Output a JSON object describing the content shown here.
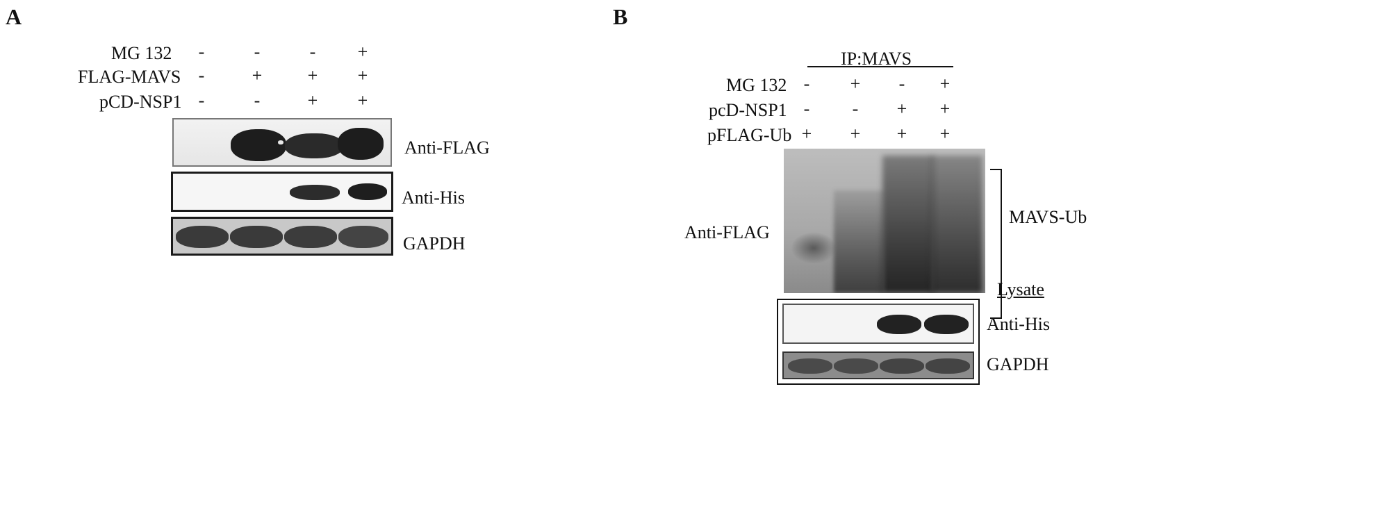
{
  "panels": {
    "A": {
      "letter": "A",
      "rows": [
        {
          "label": "MG 132",
          "signs": [
            "-",
            "-",
            "-",
            "+"
          ]
        },
        {
          "label": "FLAG-MAVS",
          "signs": [
            "-",
            "+",
            "+",
            "+"
          ]
        },
        {
          "label": "pCD-NSP1",
          "signs": [
            "-",
            "-",
            "+",
            "+"
          ]
        }
      ],
      "blots": [
        {
          "label": "Anti-FLAG"
        },
        {
          "label": "Anti-His"
        },
        {
          "label": "GAPDH"
        }
      ]
    },
    "B": {
      "letter": "B",
      "ip_label": "IP:MAVS",
      "rows": [
        {
          "label": "MG 132",
          "signs": [
            "-",
            "+",
            "-",
            "+"
          ]
        },
        {
          "label": "pcD-NSP1",
          "signs": [
            "-",
            "-",
            "+",
            "+"
          ]
        },
        {
          "label": "pFLAG-Ub",
          "signs": [
            "+",
            "+",
            "+",
            "+"
          ]
        }
      ],
      "ip_blot_label": "Anti-FLAG",
      "bracket_label": "MAVS-Ub",
      "lysate_label": "Lysate",
      "lysate_blots": [
        {
          "label": "Anti-His"
        },
        {
          "label": "GAPDH"
        }
      ]
    }
  }
}
